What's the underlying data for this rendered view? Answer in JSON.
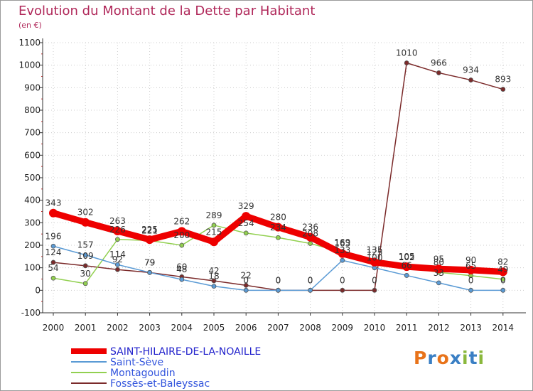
{
  "title": "Evolution du Montant de la Dette par Habitant",
  "unit_label": "(en €)",
  "logo": {
    "text": "Proxiti"
  },
  "colors": {
    "title": "#b0285a",
    "axis": "#333333",
    "grid": "#cccccc"
  },
  "chart_data": {
    "type": "line",
    "title": "Evolution du Montant de la Dette par Habitant",
    "ylabel": "(en €)",
    "xlabel": "",
    "x": [
      "2000",
      "2001",
      "2002",
      "2003",
      "2004",
      "2005",
      "2006",
      "2007",
      "2008",
      "2009",
      "2010",
      "2011",
      "2012",
      "2013",
      "2014"
    ],
    "ylim": [
      -100,
      1100
    ],
    "yticks": [
      -100,
      0,
      100,
      200,
      300,
      400,
      500,
      600,
      700,
      800,
      900,
      1000,
      1100
    ],
    "grid": true,
    "legend_position": "bottom-left",
    "series": [
      {
        "name": "SAINT-HILAIRE-DE-LA-NOAILLE",
        "color": "#ee0000",
        "values": [
          343,
          302,
          263,
          225,
          262,
          215,
          329,
          280,
          236,
          163,
          125,
          105,
          95,
          90,
          82
        ]
      },
      {
        "name": "Saint-Sève",
        "color": "#5b9bd5",
        "values": [
          196,
          157,
          114,
          79,
          48,
          18,
          0,
          0,
          0,
          133,
          100,
          66,
          33,
          0,
          0
        ]
      },
      {
        "name": "Montagoudin",
        "color": "#92d050",
        "values": [
          54,
          30,
          226,
          221,
          200,
          289,
          254,
          234,
          208,
          169,
          135,
          102,
          80,
          65,
          49
        ]
      },
      {
        "name": "Fossès-et-Baleyssac",
        "color": "#7b2a2a",
        "values": [
          124,
          109,
          92,
          79,
          60,
          42,
          22,
          0,
          0,
          0,
          0,
          1010,
          966,
          934,
          893
        ]
      }
    ]
  }
}
